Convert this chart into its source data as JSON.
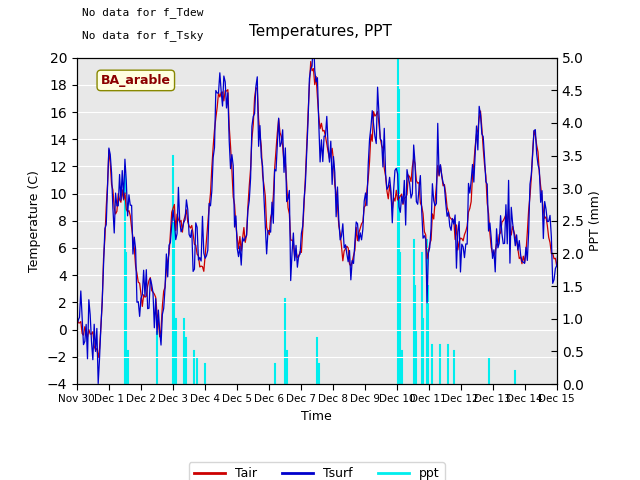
{
  "title": "Temperatures, PPT",
  "xlabel": "Time",
  "ylabel_left": "Temperature (C)",
  "ylabel_right": "PPT (mm)",
  "annotation1": "No data for f_Tdew",
  "annotation2": "No data for f_Tsky",
  "box_label": "BA_arable",
  "ylim_left": [
    -4,
    20
  ],
  "ylim_right": [
    0.0,
    5.0
  ],
  "yticks_left": [
    -4,
    -2,
    0,
    2,
    4,
    6,
    8,
    10,
    12,
    14,
    16,
    18,
    20
  ],
  "yticks_right": [
    0.0,
    0.5,
    1.0,
    1.5,
    2.0,
    2.5,
    3.0,
    3.5,
    4.0,
    4.5,
    5.0
  ],
  "xtick_labels": [
    "Nov 30",
    "Dec 1",
    "Dec 2",
    "Dec 3",
    "Dec 4",
    "Dec 5",
    "Dec 6",
    "Dec 7",
    "Dec 8",
    "Dec 9",
    "Dec 10",
    "Dec 11",
    "Dec 12",
    "Dec 13",
    "Dec 14",
    "Dec 15"
  ],
  "xtick_positions": [
    0,
    1,
    2,
    3,
    4,
    5,
    6,
    7,
    8,
    9,
    10,
    11,
    12,
    13,
    14,
    15
  ],
  "tair_color": "#cc0000",
  "tsurf_color": "#0000cc",
  "ppt_color": "#00eeee",
  "bg_color": "#e8e8e8",
  "legend_labels": [
    "Tair",
    "Tsurf",
    "ppt"
  ]
}
